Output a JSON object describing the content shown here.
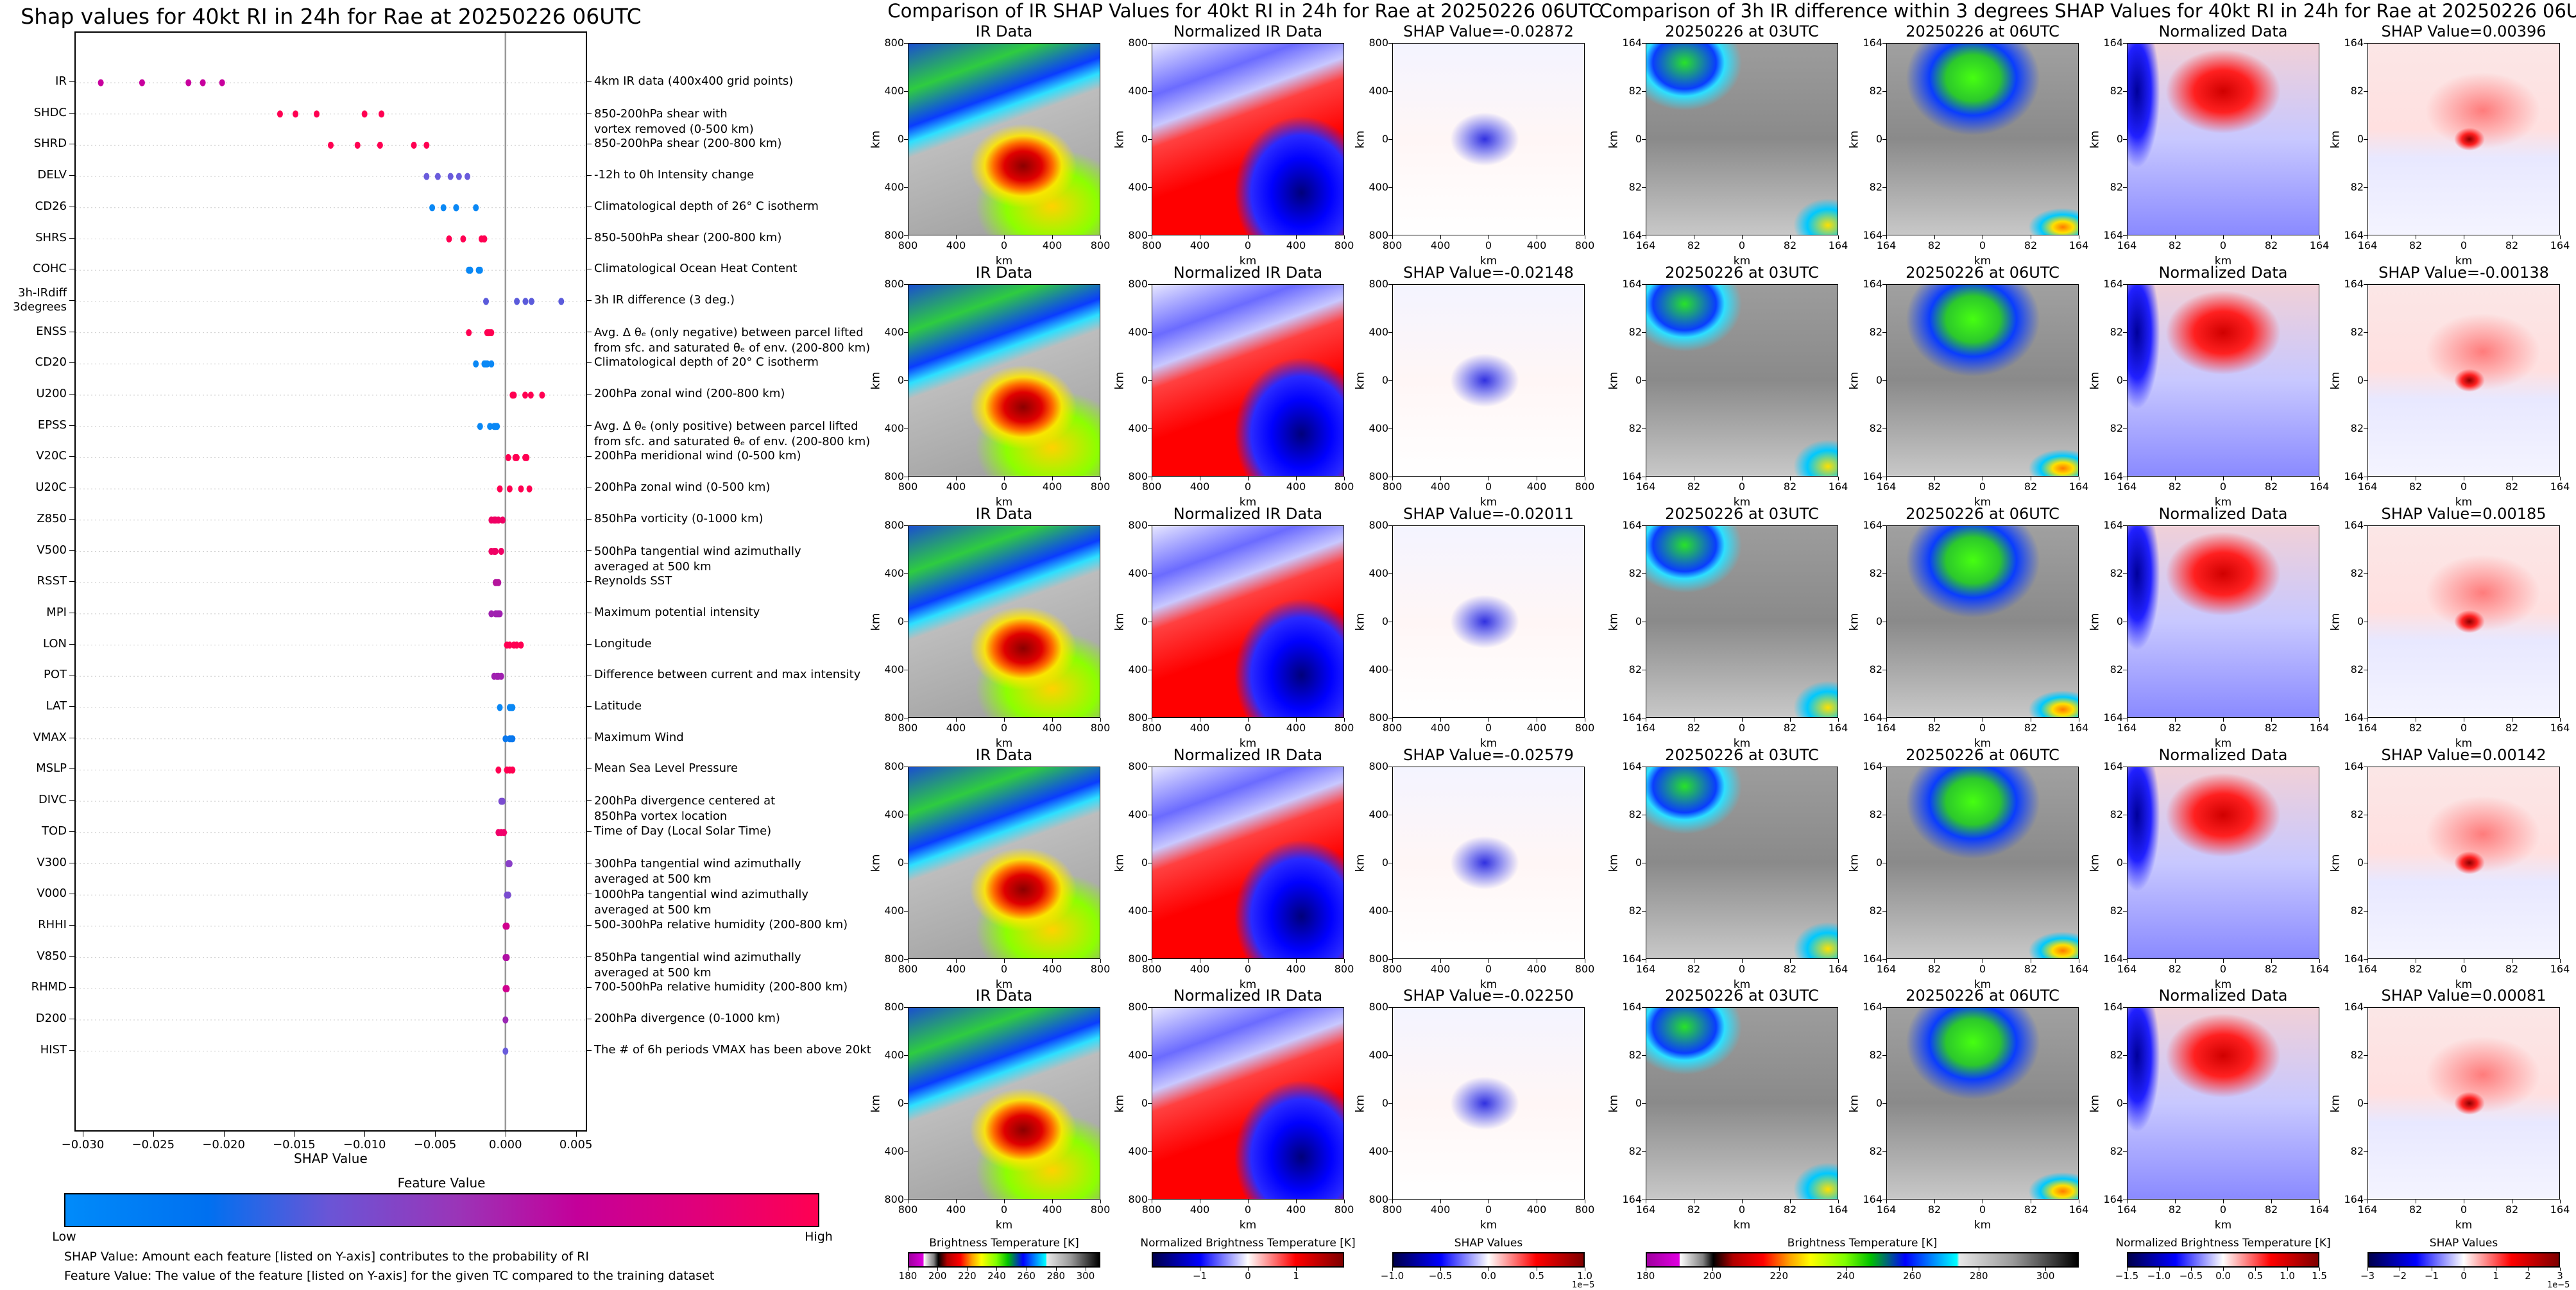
{
  "left_chart": {
    "title": "Shap values for 40kt RI in 24h for Rae at 20250226 06UTC",
    "xlabel": "SHAP Value",
    "xticks": [
      "−0.030",
      "−0.025",
      "−0.020",
      "−0.015",
      "−0.010",
      "−0.005",
      "0.000",
      "0.005"
    ],
    "colorbar": {
      "title": "Feature Value",
      "low": "Low",
      "high": "High"
    },
    "notes": [
      "SHAP Value: Amount each feature [listed on Y-axis] contributes to the probability of RI",
      "Feature Value: The value of the feature [listed on Y-axis] for the given TC compared to the training dataset"
    ]
  },
  "chart_data": [
    {
      "type": "scatter",
      "title": "Shap values for 40kt RI in 24h for Rae at 20250226 06UTC",
      "xlabel": "SHAP Value",
      "ylabel": "",
      "xlim": [
        -0.0305,
        0.0057
      ],
      "xticks": [
        -0.03,
        -0.025,
        -0.02,
        -0.015,
        -0.01,
        -0.005,
        0.0,
        0.005
      ],
      "grid": "horizontal dotted",
      "reference_line_x": 0.0,
      "legend": "colorbar bottom (Feature Value: Low to High)",
      "features": [
        {
          "name": "IR",
          "desc": "4km IR data (400x400 grid points)",
          "color": "#c8009e",
          "values": [
            -0.02872,
            -0.02579,
            -0.0225,
            -0.02148,
            -0.02011
          ]
        },
        {
          "name": "SHDC",
          "desc": "850-200hPa shear with\nvortex removed (0-500 km)",
          "color": "#ff0052",
          "values": [
            -0.016,
            -0.0149,
            -0.0134,
            -0.01,
            -0.0088
          ]
        },
        {
          "name": "SHRD",
          "desc": "850-200hPa shear (200-800 km)",
          "color": "#ff0052",
          "values": [
            -0.0124,
            -0.0105,
            -0.0089,
            -0.0065,
            -0.0056
          ]
        },
        {
          "name": "DELV",
          "desc": "-12h to 0h Intensity change",
          "color": "#6a5cdc",
          "values": [
            -0.0056,
            -0.0048,
            -0.0039,
            -0.0033,
            -0.0027
          ]
        },
        {
          "name": "CD26",
          "desc": "Climatological depth of 26° C isotherm",
          "color": "#0a88f5",
          "values": [
            -0.0052,
            -0.0044,
            -0.0035,
            -0.0035,
            -0.0021
          ]
        },
        {
          "name": "SHRS",
          "desc": "850-500hPa shear (200-800 km)",
          "color": "#ff0052",
          "values": [
            -0.004,
            -0.003,
            -0.0017,
            -0.0015,
            -0.0015
          ]
        },
        {
          "name": "COHC",
          "desc": "Climatological Ocean Heat Content",
          "color": "#0a88f5",
          "values": [
            -0.0026,
            -0.0025,
            -0.0025,
            -0.0019,
            -0.0018
          ]
        },
        {
          "name": "3h-IRdiff\n3degrees",
          "desc": "3h IR difference (3 deg.)",
          "color": "#5b5bdb",
          "values": [
            -0.00138,
            0.00081,
            0.00142,
            0.00185,
            0.00396
          ]
        },
        {
          "name": "ENSS",
          "desc": "Avg. Δ θₑ (only negative) between parcel lifted\nfrom sfc. and saturated θₑ of env. (200-800 km)",
          "color": "#ff0052",
          "values": [
            -0.0026,
            -0.0013,
            -0.0012,
            -0.0011,
            -0.001
          ]
        },
        {
          "name": "CD20",
          "desc": "Climatological depth of 20° C isotherm",
          "color": "#0a88f5",
          "values": [
            -0.0021,
            -0.0015,
            -0.0014,
            -0.0013,
            -0.001
          ]
        },
        {
          "name": "U200",
          "desc": "200hPa zonal wind (200-800 km)",
          "color": "#ff0052",
          "values": [
            0.0005,
            0.0006,
            0.0014,
            0.0018,
            0.0026
          ]
        },
        {
          "name": "EPSS",
          "desc": "Avg. Δ θₑ (only positive) between parcel lifted\nfrom sfc. and saturated θₑ of env. (200-800 km)",
          "color": "#0a88f5",
          "values": [
            -0.0018,
            -0.0011,
            -0.0008,
            -0.0007,
            -0.0006
          ]
        },
        {
          "name": "V20C",
          "desc": "200hPa meridional wind (0-500 km)",
          "color": "#ff0052",
          "values": [
            0.0002,
            0.0007,
            0.0008,
            0.0014,
            0.0015
          ]
        },
        {
          "name": "U20C",
          "desc": "200hPa zonal wind (0-500 km)",
          "color": "#ff0052",
          "values": [
            -0.0004,
            0.0003,
            0.0011,
            0.0017
          ]
        },
        {
          "name": "Z850",
          "desc": "850hPa vorticity (0-1000 km)",
          "color": "#f00064",
          "values": [
            -0.001,
            -0.0008,
            -0.0007,
            -0.0005,
            -0.0002
          ]
        },
        {
          "name": "V500",
          "desc": "500hPa tangential wind azimuthally\naveraged at 500 km",
          "color": "#f00064",
          "values": [
            -0.001,
            -0.0008,
            -0.0007,
            -0.0003
          ]
        },
        {
          "name": "RSST",
          "desc": "Reynolds SST",
          "color": "#b4149c",
          "values": [
            -0.0007,
            -0.0006,
            -0.0005
          ]
        },
        {
          "name": "MPI",
          "desc": "Maximum potential intensity",
          "color": "#a020b0",
          "values": [
            -0.001,
            -0.0007,
            -0.0006,
            -0.0005,
            -0.0004
          ]
        },
        {
          "name": "LON",
          "desc": "Longitude",
          "color": "#ff0052",
          "values": [
            0.0001,
            0.0003,
            0.0006,
            0.0008,
            0.0011
          ]
        },
        {
          "name": "POT",
          "desc": "Difference between current and max intensity",
          "color": "#a020b0",
          "values": [
            -0.0008,
            -0.0006,
            -0.0005,
            -0.0003
          ]
        },
        {
          "name": "LAT",
          "desc": "Latitude",
          "color": "#0a88f5",
          "values": [
            -0.0004,
            0.0003,
            0.0004,
            0.0005
          ]
        },
        {
          "name": "VMAX",
          "desc": "Maximum Wind",
          "color": "#0a78ee",
          "values": [
            0.0,
            0.0003,
            0.0004,
            0.0005
          ]
        },
        {
          "name": "MSLP",
          "desc": "Mean Sea Level Pressure",
          "color": "#ff0052",
          "values": [
            -0.0005,
            0.0001,
            0.0003,
            0.0005
          ]
        },
        {
          "name": "DIVC",
          "desc": "200hPa divergence centered at\n850hPa vortex location",
          "color": "#7a4cd0",
          "values": [
            -0.0003,
            -0.0002
          ]
        },
        {
          "name": "TOD",
          "desc": "Time of Day (Local Solar Time)",
          "color": "#f0006a",
          "values": [
            -0.0005,
            -0.0003,
            -0.0001
          ]
        },
        {
          "name": "V300",
          "desc": "300hPa tangential wind azimuthally\naveraged at 500 km",
          "color": "#8a40c8",
          "values": [
            0.0002,
            0.0003
          ]
        },
        {
          "name": "V000",
          "desc": "1000hPa tangential wind azimuthally\naveraged at 500 km",
          "color": "#7a4cd0",
          "values": [
            0.0001,
            0.0002
          ]
        },
        {
          "name": "RHHI",
          "desc": "500-300hPa relative humidity (200-800 km)",
          "color": "#d0008e",
          "values": [
            0.0,
            0.0001
          ]
        },
        {
          "name": "V850",
          "desc": "850hPa tangential wind azimuthally\naveraged at 500 km",
          "color": "#b010a4",
          "values": [
            0.0,
            0.0001
          ]
        },
        {
          "name": "RHMD",
          "desc": "700-500hPa relative humidity (200-800 km)",
          "color": "#d0008e",
          "values": [
            0.0,
            0.0001
          ]
        },
        {
          "name": "D200",
          "desc": "200hPa divergence (0-1000 km)",
          "color": "#9a28b4",
          "values": [
            0.0,
            0.0
          ]
        },
        {
          "name": "HIST",
          "desc": "The # of 6h periods VMAX has been above 20kt",
          "color": "#6a5cdc",
          "values": [
            0.0
          ]
        }
      ]
    },
    {
      "type": "heatmap",
      "title": "Comparison of IR SHAP Values for 40kt RI in 24h for Rae at 20250226 06UTC",
      "columns": [
        "IR Data",
        "Normalized IR Data",
        "SHAP Value"
      ],
      "rows": 5,
      "shap_values": [
        -0.02872,
        -0.02148,
        -0.02011,
        -0.02579,
        -0.0225
      ],
      "xlabel": "km",
      "ylabel": "km",
      "ticks": [
        "800",
        "400",
        "0",
        "400",
        "800"
      ],
      "colorbars": [
        {
          "title": "Brightness Temperature [K]",
          "range": [
            180,
            310
          ],
          "ticks": [
            "180",
            "200",
            "220",
            "240",
            "260",
            "280",
            "300"
          ]
        },
        {
          "title": "Normalized Brightness Temperature [K]",
          "range": [
            -2,
            2
          ],
          "ticks": [
            "−1",
            "0",
            "1"
          ]
        },
        {
          "title": "SHAP Values",
          "range": [
            -1.0,
            1.0
          ],
          "ticks": [
            "−1.0",
            "−0.5",
            "0.0",
            "0.5",
            "1.0"
          ],
          "scale": "1e−5"
        }
      ]
    },
    {
      "type": "heatmap",
      "title": "Comparison of 3h IR difference within 3 degrees SHAP Values for 40kt RI in 24h for Rae at 20250226 06UTC",
      "columns": [
        "20250226 at 03UTC",
        "20250226 at 06UTC",
        "Normalized Data",
        "SHAP Value"
      ],
      "rows": 5,
      "shap_values": [
        0.00396,
        -0.00138,
        0.00185,
        0.00142,
        0.00081
      ],
      "xlabel": "km",
      "ylabel": "km",
      "ticks": [
        "164",
        "82",
        "0",
        "82",
        "164"
      ],
      "colorbars": [
        {
          "title": "Brightness Temperature [K]",
          "range": [
            180,
            310
          ],
          "ticks": [
            "180",
            "200",
            "220",
            "240",
            "260",
            "280",
            "300"
          ]
        },
        {
          "title": "Normalized Brightness Temperature [K]",
          "range": [
            -1.5,
            1.5
          ],
          "ticks": [
            "−1.5",
            "−1.0",
            "−0.5",
            "0.0",
            "0.5",
            "1.0",
            "1.5"
          ]
        },
        {
          "title": "SHAP Values",
          "range": [
            -3,
            3
          ],
          "ticks": [
            "−3",
            "−2",
            "−1",
            "0",
            "1",
            "2",
            "3"
          ],
          "scale": "1e−5"
        }
      ]
    }
  ],
  "ir_section": {
    "title": "Comparison of IR SHAP Values for 40kt RI in 24h for Rae at 20250226 06UTC",
    "col_titles": [
      "IR Data",
      "Normalized IR Data"
    ],
    "shap_titles": [
      "SHAP Value=-0.02872",
      "SHAP Value=-0.02148",
      "SHAP Value=-0.02011",
      "SHAP Value=-0.02579",
      "SHAP Value=-0.02250"
    ],
    "axis_label": "km",
    "ticks": [
      "800",
      "400",
      "0",
      "400",
      "800"
    ],
    "cb_titles": [
      "Brightness Temperature [K]",
      "Normalized Brightness Temperature [K]",
      "SHAP Values"
    ],
    "cb_ticks": [
      [
        "180",
        "200",
        "220",
        "240",
        "260",
        "280",
        "300"
      ],
      [
        "−1",
        "0",
        "1"
      ],
      [
        "−1.0",
        "−0.5",
        "0.0",
        "0.5",
        "1.0"
      ]
    ],
    "cb_scale": "1e−5"
  },
  "diff_section": {
    "title": "Comparison of 3h IR difference within 3 degrees SHAP Values for 40kt RI in 24h for Rae at 20250226 06UTC",
    "col_titles": [
      "20250226 at 03UTC",
      "20250226 at 06UTC",
      "Normalized Data"
    ],
    "shap_titles": [
      "SHAP Value=0.00396",
      "SHAP Value=-0.00138",
      "SHAP Value=0.00185",
      "SHAP Value=0.00142",
      "SHAP Value=0.00081"
    ],
    "axis_label": "km",
    "ticks": [
      "164",
      "82",
      "0",
      "82",
      "164"
    ],
    "cb_titles": [
      "Brightness Temperature [K]",
      "Normalized Brightness Temperature [K]",
      "SHAP Values"
    ],
    "cb_ticks": [
      [
        "180",
        "200",
        "220",
        "240",
        "260",
        "280",
        "300"
      ],
      [
        "−1.5",
        "−1.0",
        "−0.5",
        "0.0",
        "0.5",
        "1.0",
        "1.5"
      ],
      [
        "−3",
        "−2",
        "−1",
        "0",
        "1",
        "2",
        "3"
      ]
    ],
    "cb_scale": "1e−5"
  }
}
